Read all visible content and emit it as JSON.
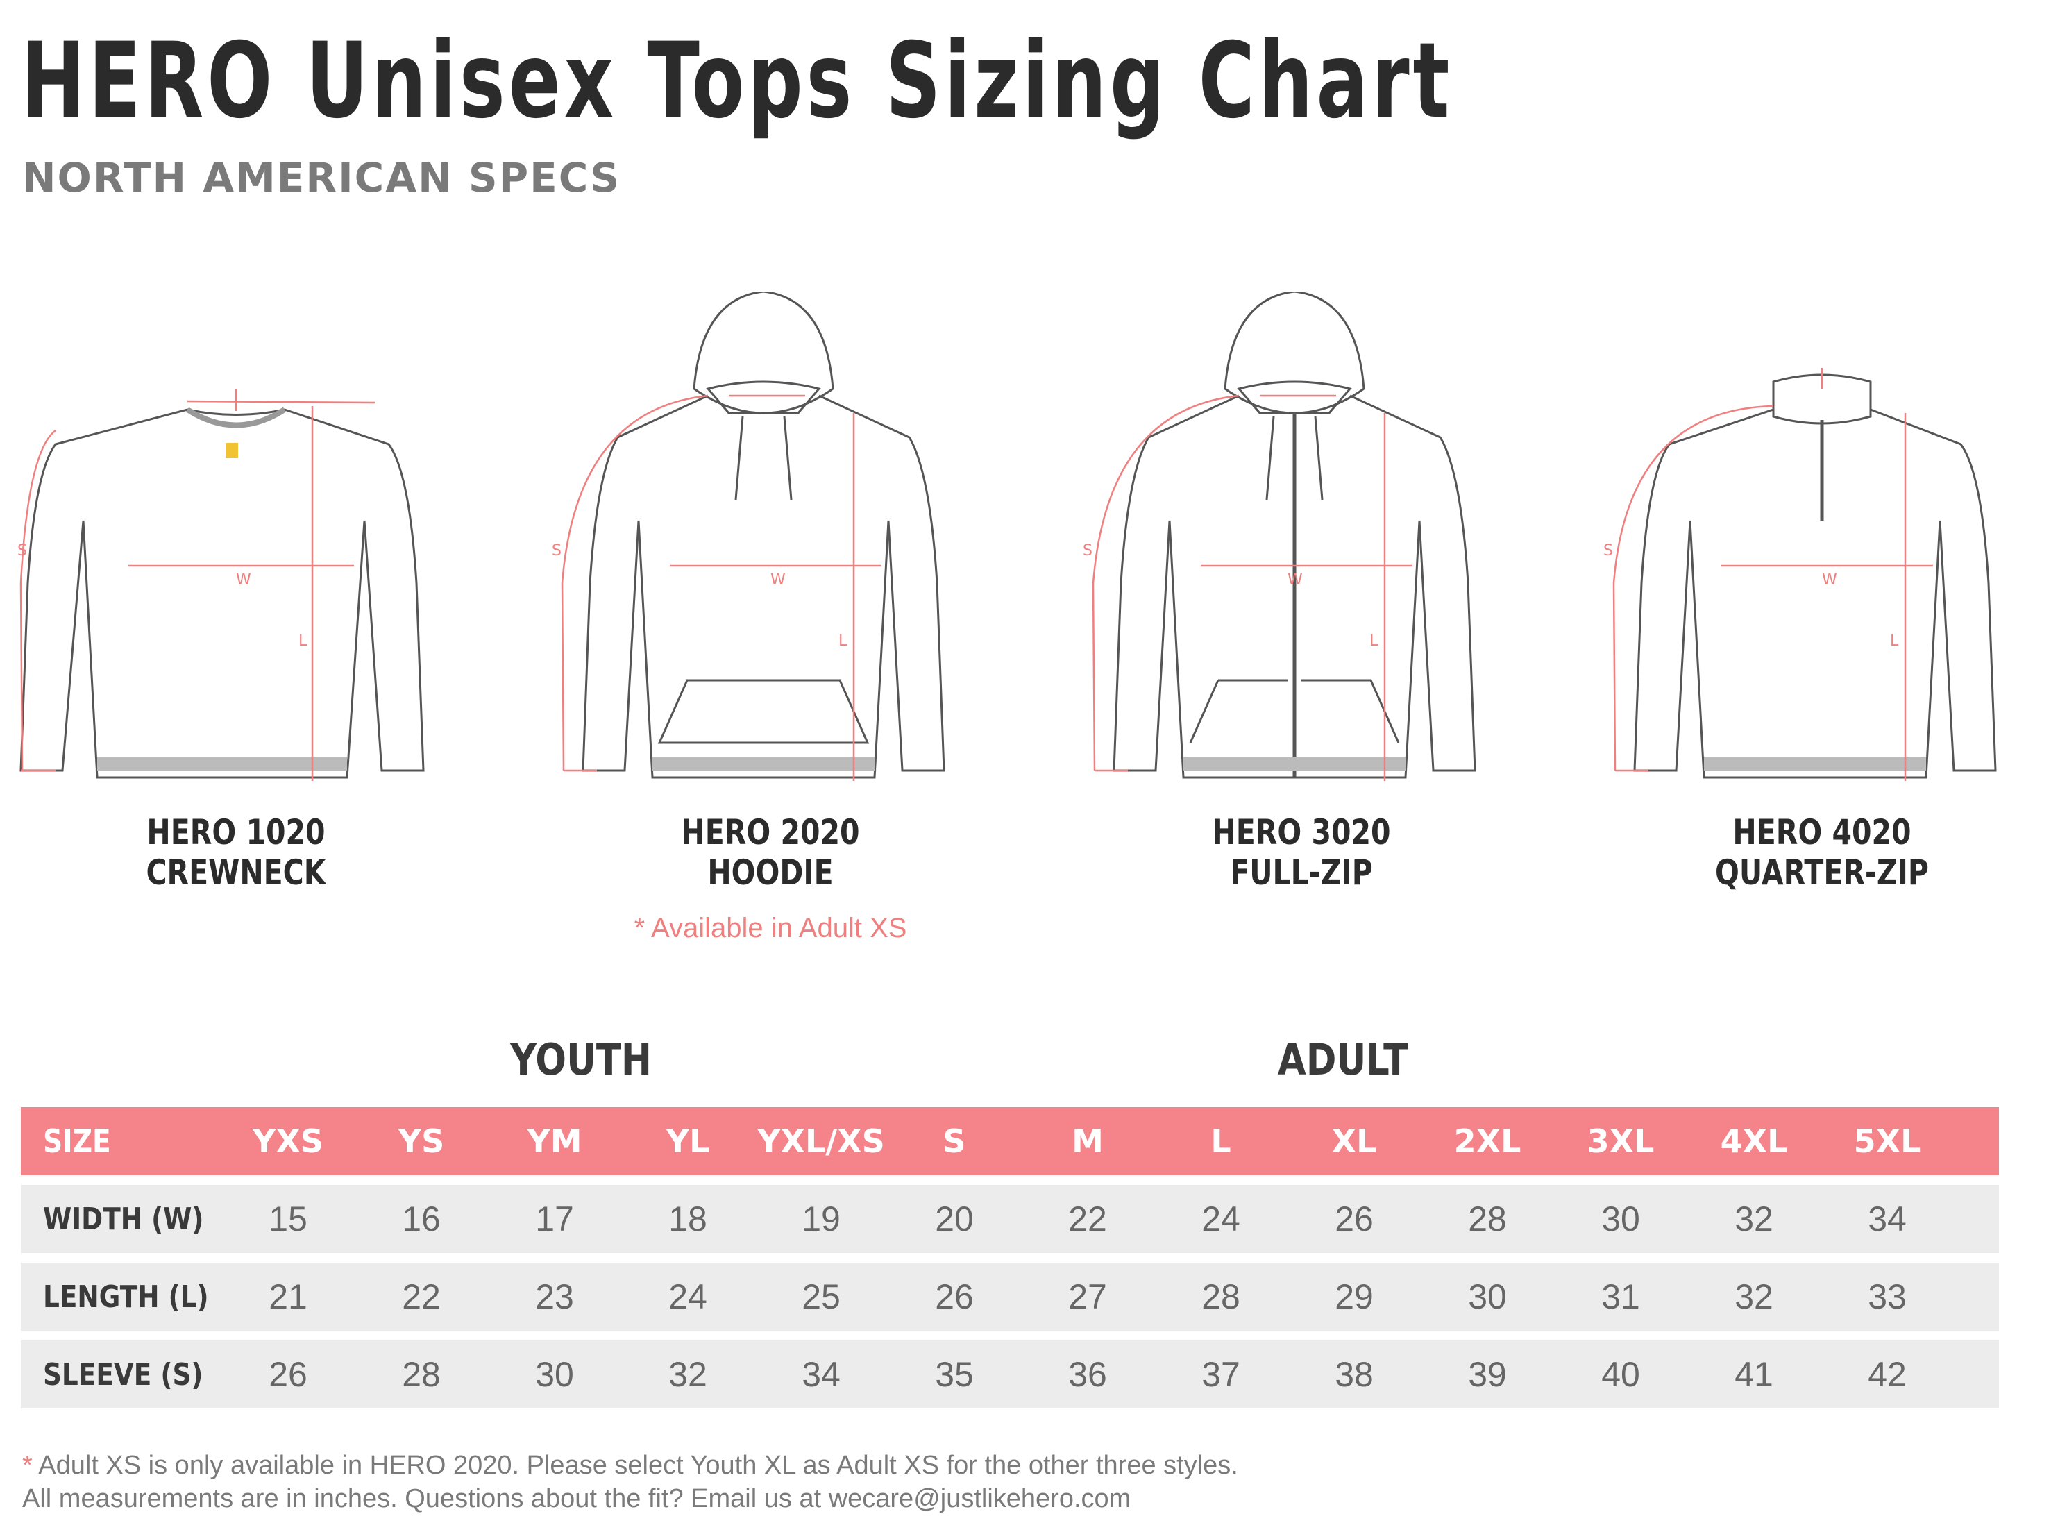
{
  "header": {
    "title": "HERO Unisex Tops Sizing Chart",
    "subtitle": "NORTH AMERICAN SPECS"
  },
  "products": [
    {
      "line1": "HERO 1020",
      "line2": "CREWNECK",
      "note": ""
    },
    {
      "line1": "HERO 2020",
      "line2": "HOODIE",
      "note": "* Available in Adult XS"
    },
    {
      "line1": "HERO 3020",
      "line2": "FULL-ZIP",
      "note": ""
    },
    {
      "line1": "HERO 4020",
      "line2": "QUARTER-ZIP",
      "note": ""
    }
  ],
  "diagram_labels": {
    "sleeve": "S",
    "width": "W",
    "length": "L"
  },
  "groups": {
    "youth": "YOUTH",
    "adult": "ADULT"
  },
  "table": {
    "header_label": "SIZE",
    "sizes": [
      "YXS",
      "YS",
      "YM",
      "YL",
      "YXL/XS",
      "S",
      "M",
      "L",
      "XL",
      "2XL",
      "3XL",
      "4XL",
      "5XL"
    ],
    "rows": [
      {
        "label": "WIDTH (W)",
        "values": [
          "15",
          "16",
          "17",
          "18",
          "19",
          "20",
          "22",
          "24",
          "26",
          "28",
          "30",
          "32",
          "34"
        ]
      },
      {
        "label": "LENGTH (L)",
        "values": [
          "21",
          "22",
          "23",
          "24",
          "25",
          "26",
          "27",
          "28",
          "29",
          "30",
          "31",
          "32",
          "33"
        ]
      },
      {
        "label": "SLEEVE (S)",
        "values": [
          "26",
          "28",
          "30",
          "32",
          "34",
          "35",
          "36",
          "37",
          "38",
          "39",
          "40",
          "41",
          "42"
        ]
      }
    ]
  },
  "footnotes": {
    "asterisk": "*",
    "line1": "Adult XS is only available in HERO 2020. Please select Youth XL as Adult XS for the other three styles.",
    "line2": "All measurements are in inches. Questions about the fit? Email us at wecare@justlikehero.com"
  },
  "colors": {
    "accent": "#f4848a",
    "row_bg": "#ececed",
    "measure_line": "#f08080",
    "outline": "#555555"
  }
}
